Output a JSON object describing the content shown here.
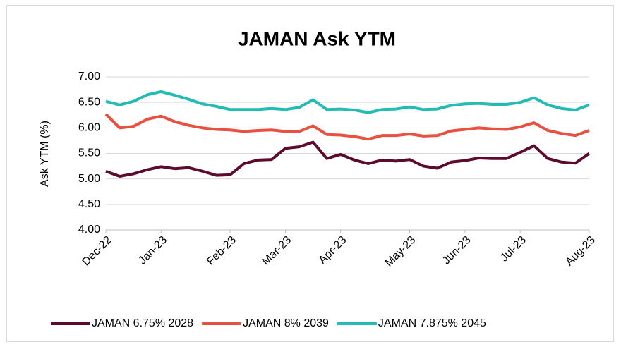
{
  "chart_data": {
    "type": "line",
    "title": "JAMAN Ask YTM",
    "y_label": "Ask YTM (%)",
    "categories": [
      "Dec-22",
      null,
      null,
      null,
      "Jan-23",
      null,
      null,
      null,
      null,
      "Feb-23",
      null,
      null,
      null,
      "Mar-23",
      null,
      null,
      null,
      "Apr-23",
      null,
      null,
      null,
      null,
      "May-23",
      null,
      null,
      null,
      "Jun-23",
      null,
      null,
      null,
      "Jul-23",
      null,
      null,
      null,
      null,
      "Aug-23"
    ],
    "series": [
      {
        "name": "JAMAN 6.75% 2028",
        "color": "#5c0b2f",
        "values": [
          5.15,
          5.05,
          5.1,
          5.18,
          5.24,
          5.2,
          5.22,
          5.15,
          5.07,
          5.08,
          5.3,
          5.37,
          5.38,
          5.6,
          5.63,
          5.72,
          5.4,
          5.48,
          5.37,
          5.3,
          5.37,
          5.35,
          5.38,
          5.25,
          5.21,
          5.33,
          5.36,
          5.41,
          5.4,
          5.4,
          5.52,
          5.65,
          5.4,
          5.33,
          5.31,
          5.5
        ]
      },
      {
        "name": "JAMAN 8% 2039",
        "color": "#e8503f",
        "values": [
          6.27,
          6.0,
          6.03,
          6.17,
          6.23,
          6.12,
          6.05,
          6.0,
          5.97,
          5.96,
          5.93,
          5.95,
          5.96,
          5.93,
          5.93,
          6.04,
          5.87,
          5.86,
          5.83,
          5.78,
          5.85,
          5.85,
          5.88,
          5.84,
          5.85,
          5.94,
          5.97,
          6.0,
          5.98,
          5.97,
          6.02,
          6.1,
          5.95,
          5.89,
          5.85,
          5.95
        ]
      },
      {
        "name": "JAMAN 7.875% 2045",
        "color": "#22bcb4",
        "values": [
          6.52,
          6.45,
          6.52,
          6.65,
          6.71,
          6.64,
          6.56,
          6.47,
          6.42,
          6.36,
          6.36,
          6.36,
          6.38,
          6.36,
          6.4,
          6.55,
          6.36,
          6.37,
          6.35,
          6.3,
          6.36,
          6.37,
          6.41,
          6.36,
          6.37,
          6.44,
          6.47,
          6.48,
          6.46,
          6.46,
          6.5,
          6.59,
          6.45,
          6.38,
          6.35,
          6.45
        ]
      }
    ],
    "ylim": [
      4,
      7
    ],
    "yticks": [
      {
        "value": 4,
        "label": "4.00"
      },
      {
        "value": 4.5,
        "label": "4.50"
      },
      {
        "value": 5,
        "label": "5.00"
      },
      {
        "value": 5.5,
        "label": "5.50"
      },
      {
        "value": 6,
        "label": "6.00"
      },
      {
        "value": 6.5,
        "label": "6.50"
      },
      {
        "value": 7,
        "label": "7.00"
      }
    ],
    "grid": true,
    "legend": "bottom"
  }
}
